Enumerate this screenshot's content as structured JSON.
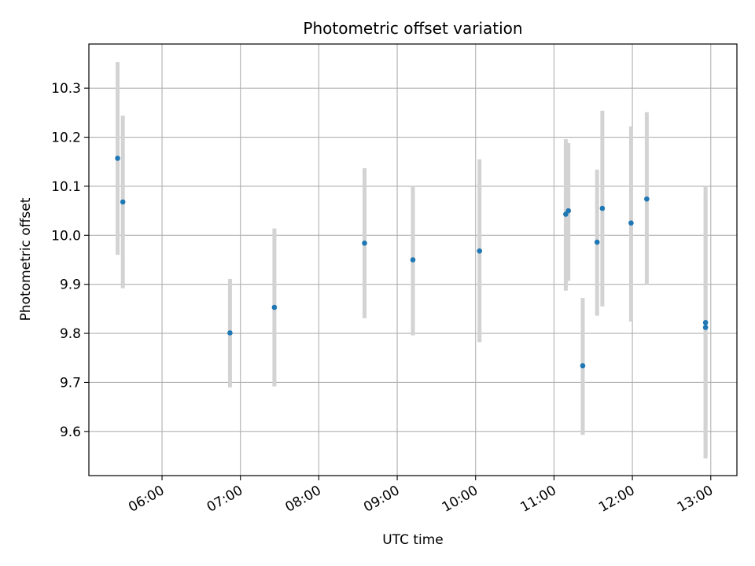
{
  "chart_data": {
    "type": "scatter",
    "title": "Photometric offset variation",
    "xlabel": "UTC time",
    "ylabel": "Photometric offset",
    "x_axis": "time",
    "xlim": [
      "05:04",
      "13:20"
    ],
    "ylim": [
      9.51,
      10.39
    ],
    "x_ticks": [
      "06:00",
      "07:00",
      "08:00",
      "09:00",
      "10:00",
      "11:00",
      "12:00",
      "13:00"
    ],
    "y_ticks": [
      9.6,
      9.7,
      9.8,
      9.9,
      10.0,
      10.1,
      10.2,
      10.3
    ],
    "y_tick_labels": [
      "9.6",
      "9.7",
      "9.8",
      "9.9",
      "10.0",
      "10.1",
      "10.2",
      "10.3"
    ],
    "grid": true,
    "colors": {
      "point": "#1f77b4",
      "errorbar": "#d3d3d3",
      "grid": "#b0b0b0"
    },
    "points": [
      {
        "x": "05:26",
        "y": 10.157,
        "y_low": 9.96,
        "y_high": 10.353
      },
      {
        "x": "05:30",
        "y": 10.068,
        "y_low": 9.892,
        "y_high": 10.244
      },
      {
        "x": "06:52",
        "y": 9.801,
        "y_low": 9.69,
        "y_high": 9.911
      },
      {
        "x": "07:26",
        "y": 9.853,
        "y_low": 9.692,
        "y_high": 10.014
      },
      {
        "x": "08:35",
        "y": 9.984,
        "y_low": 9.831,
        "y_high": 10.137
      },
      {
        "x": "09:12",
        "y": 9.95,
        "y_low": 9.796,
        "y_high": 10.1
      },
      {
        "x": "10:03",
        "y": 9.968,
        "y_low": 9.782,
        "y_high": 10.155
      },
      {
        "x": "11:09",
        "y": 10.043,
        "y_low": 9.887,
        "y_high": 10.196
      },
      {
        "x": "11:11",
        "y": 10.05,
        "y_low": 9.907,
        "y_high": 10.188
      },
      {
        "x": "11:22",
        "y": 9.734,
        "y_low": 9.593,
        "y_high": 9.872
      },
      {
        "x": "11:33",
        "y": 9.986,
        "y_low": 9.836,
        "y_high": 10.134
      },
      {
        "x": "11:37",
        "y": 10.055,
        "y_low": 9.855,
        "y_high": 10.254
      },
      {
        "x": "11:59",
        "y": 10.025,
        "y_low": 9.824,
        "y_high": 10.222
      },
      {
        "x": "12:11",
        "y": 10.074,
        "y_low": 9.9,
        "y_high": 10.251
      },
      {
        "x": "12:56",
        "y": 9.822,
        "y_low": 9.545,
        "y_high": 10.1
      },
      {
        "x": "12:56",
        "y": 9.812,
        "y_low": 9.545,
        "y_high": 10.08
      }
    ]
  }
}
